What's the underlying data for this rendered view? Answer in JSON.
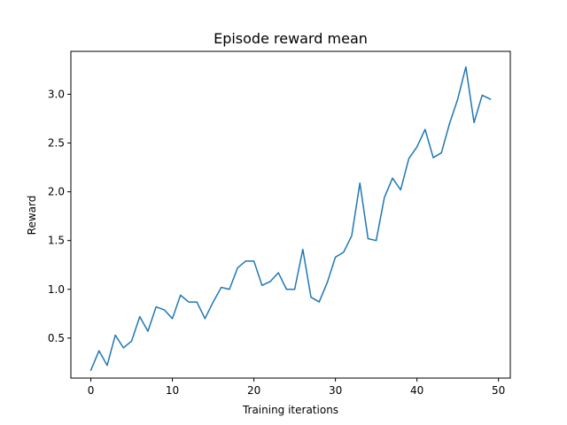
{
  "chart_data": {
    "type": "line",
    "title": "Episode reward mean",
    "xlabel": "Training iterations",
    "ylabel": "Reward",
    "xlim": [
      -2.45,
      51.45
    ],
    "ylim": [
      0.09,
      3.44
    ],
    "xticks": [
      0,
      10,
      20,
      30,
      40,
      50
    ],
    "yticks": [
      0.5,
      1.0,
      1.5,
      2.0,
      2.5,
      3.0
    ],
    "ytick_labels": [
      "0.5",
      "1.0",
      "1.5",
      "2.0",
      "2.5",
      "3.0"
    ],
    "grid": false,
    "series": [
      {
        "color": "#1f77b4",
        "x": [
          0,
          1,
          2,
          3,
          4,
          5,
          6,
          7,
          8,
          9,
          10,
          11,
          12,
          13,
          14,
          15,
          16,
          17,
          18,
          19,
          20,
          21,
          22,
          23,
          24,
          25,
          26,
          27,
          28,
          29,
          30,
          31,
          32,
          33,
          34,
          35,
          36,
          37,
          38,
          39,
          40,
          41,
          42,
          43,
          44,
          45,
          46,
          47,
          48,
          49
        ],
        "values": [
          0.17,
          0.37,
          0.22,
          0.53,
          0.4,
          0.47,
          0.72,
          0.57,
          0.82,
          0.79,
          0.7,
          0.94,
          0.87,
          0.87,
          0.7,
          0.87,
          1.02,
          1.0,
          1.22,
          1.29,
          1.29,
          1.04,
          1.08,
          1.17,
          1.0,
          1.0,
          1.41,
          0.92,
          0.87,
          1.07,
          1.33,
          1.38,
          1.55,
          2.09,
          1.52,
          1.5,
          1.94,
          2.14,
          2.02,
          2.34,
          2.46,
          2.64,
          2.35,
          2.4,
          2.7,
          2.95,
          3.28,
          2.71,
          2.99,
          2.95
        ]
      }
    ]
  }
}
